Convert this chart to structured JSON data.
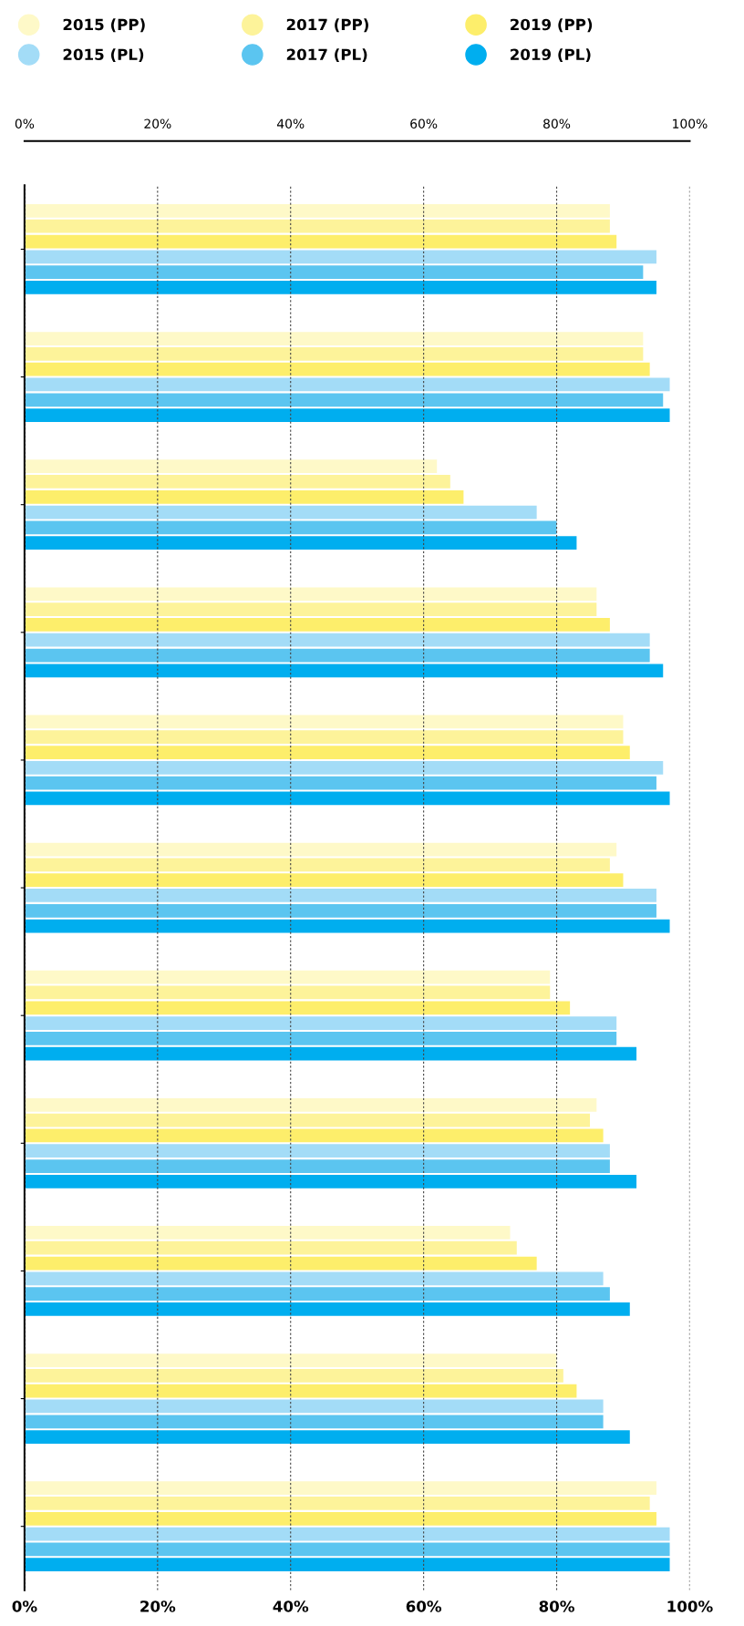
{
  "chart_data": {
    "type": "bar",
    "orientation": "horizontal",
    "categories": [
      null,
      null,
      null,
      null,
      null,
      null,
      null,
      null,
      null,
      null,
      null
    ],
    "series": [
      {
        "name": "2015 (PP)",
        "color": "#fef9c8",
        "values": [
          88,
          93,
          62,
          86,
          90,
          89,
          79,
          86,
          73,
          80,
          95
        ]
      },
      {
        "name": "2017 (PP)",
        "color": "#fdf39a",
        "values": [
          88,
          93,
          64,
          86,
          90,
          88,
          79,
          85,
          74,
          81,
          94
        ]
      },
      {
        "name": "2019 (PP)",
        "color": "#fdee6b",
        "values": [
          89,
          94,
          66,
          88,
          91,
          90,
          82,
          87,
          77,
          83,
          95
        ]
      },
      {
        "name": "2015 (PL)",
        "color": "#a3dcf7",
        "values": [
          95,
          97,
          77,
          94,
          96,
          95,
          89,
          88,
          87,
          87,
          97
        ]
      },
      {
        "name": "2017 (PL)",
        "color": "#5bc5f0",
        "values": [
          93,
          96,
          80,
          94,
          95,
          95,
          89,
          88,
          88,
          87,
          97
        ]
      },
      {
        "name": "2019 (PL)",
        "color": "#00aeef",
        "values": [
          95,
          97,
          83,
          96,
          97,
          97,
          92,
          92,
          91,
          91,
          97
        ]
      }
    ],
    "xlim": [
      0,
      100
    ],
    "xticks": [
      {
        "value": 0,
        "label": "0%"
      },
      {
        "value": 20,
        "label": "20%"
      },
      {
        "value": 40,
        "label": "40%"
      },
      {
        "value": 60,
        "label": "60%"
      },
      {
        "value": 80,
        "label": "80%"
      },
      {
        "value": 100,
        "label": "100%"
      }
    ],
    "x2lim": [
      0,
      100
    ],
    "x2ticks": [
      {
        "value": 0,
        "label": "0%"
      },
      {
        "value": 20,
        "label": "20%"
      },
      {
        "value": 40,
        "label": "40%"
      },
      {
        "value": 60,
        "label": "60%"
      },
      {
        "value": 80,
        "label": "80%"
      },
      {
        "value": 100,
        "label": "100%"
      }
    ],
    "grid": "x",
    "legend": "top",
    "marker": "circle"
  }
}
